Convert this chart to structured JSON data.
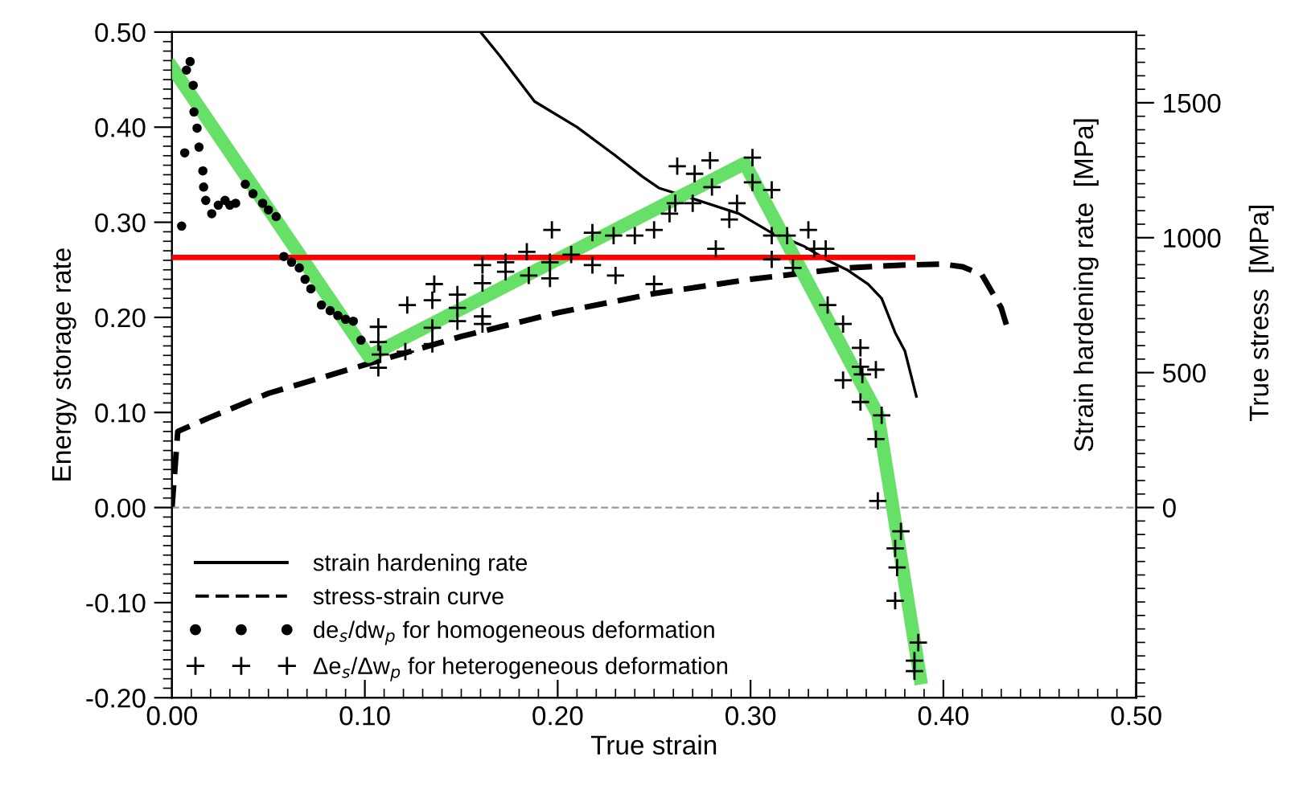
{
  "chart_data": {
    "type": "line",
    "xlabel": "True strain",
    "ylabel": "Energy storage rate",
    "y2label": "Strain hardening rate  [MPa]",
    "annotations": [
      "True stress  [MPa]"
    ],
    "xlim": [
      0,
      0.5
    ],
    "xticks": [
      {
        "value": 0,
        "label": "0.00"
      },
      {
        "value": 0.1,
        "label": "0.10"
      },
      {
        "value": 0.2,
        "label": "0.20"
      },
      {
        "value": 0.3,
        "label": "0.30"
      },
      {
        "value": 0.4,
        "label": "0.40"
      },
      {
        "value": 0.5,
        "label": "0.50"
      }
    ],
    "ylim": [
      -0.2,
      0.5
    ],
    "yticks": [
      {
        "value": -0.2,
        "label": "-0.20"
      },
      {
        "value": -0.1,
        "label": "-0.10"
      },
      {
        "value": 0,
        "label": "0.00"
      },
      {
        "value": 0.1,
        "label": "0.10"
      },
      {
        "value": 0.2,
        "label": "0.20"
      },
      {
        "value": 0.3,
        "label": "0.30"
      },
      {
        "value": 0.4,
        "label": "0.40"
      },
      {
        "value": 0.5,
        "label": "0.50"
      }
    ],
    "y2lim": [
      -705,
      1762
    ],
    "y2ticks": [
      0,
      500,
      1000,
      1500
    ],
    "grid": false,
    "legend": "bottom left",
    "ref_lines": [
      {
        "axis": "y",
        "value": 0,
        "color": "#999999",
        "line_style": "dashed"
      }
    ],
    "series": [
      {
        "name": "strain hardening rate",
        "axis": "y2",
        "color": "#000000",
        "line_style": "solid",
        "marker": "none",
        "x": [
          0.16,
          0.17,
          0.188,
          0.21,
          0.23,
          0.244,
          0.2525,
          0.27,
          0.294,
          0.31,
          0.3275,
          0.34,
          0.35,
          0.361,
          0.368,
          0.375,
          0.38,
          0.386
        ],
        "values": [
          1762,
          1674,
          1505,
          1410,
          1304,
          1226,
          1184,
          1145,
          1089,
          1022,
          969,
          916,
          881,
          828,
          775,
          648,
          581,
          412
        ]
      },
      {
        "name": "stress-strain curve",
        "axis": "y2",
        "color": "#000000",
        "line_style": "dashed",
        "marker": "none",
        "x": [
          0,
          0.003,
          0.02,
          0.05,
          0.1,
          0.15,
          0.2,
          0.25,
          0.3,
          0.35,
          0.38,
          0.4,
          0.41,
          0.42,
          0.43,
          0.433
        ],
        "values": [
          0,
          282,
          335,
          423,
          529,
          634,
          722,
          793,
          846,
          888,
          899,
          902,
          892,
          863,
          740,
          670
        ]
      },
      {
        "name": "de$_{s}$/dw$_{p}$ for homogeneous deformation",
        "type": "scatter",
        "color": "#000000",
        "marker": "circle",
        "x": [
          0.005,
          0.0066,
          0.0075,
          0.0094,
          0.011,
          0.0114,
          0.013,
          0.014,
          0.016,
          0.0164,
          0.0175,
          0.0206,
          0.024,
          0.0275,
          0.03,
          0.033,
          0.038,
          0.042,
          0.047,
          0.05,
          0.054,
          0.058,
          0.062,
          0.066,
          0.069,
          0.072,
          0.0775,
          0.082,
          0.086,
          0.09,
          0.094,
          0.098
        ],
        "values": [
          0.296,
          0.373,
          0.46,
          0.469,
          0.444,
          0.416,
          0.399,
          0.379,
          0.354,
          0.337,
          0.323,
          0.309,
          0.318,
          0.323,
          0.318,
          0.32,
          0.34,
          0.33,
          0.32,
          0.313,
          0.306,
          0.264,
          0.258,
          0.252,
          0.24,
          0.23,
          0.213,
          0.207,
          0.202,
          0.198,
          0.196,
          0.176
        ]
      },
      {
        "name": "Δe$_{s}$/Δw$_{p}$ for heterogeneous deformation",
        "type": "scatter",
        "color": "#000000",
        "marker": "cross",
        "x": [
          0.107,
          0.107,
          0.107,
          0.108,
          0.122,
          0.121,
          0.136,
          0.135,
          0.135,
          0.135,
          0.148,
          0.148,
          0.148,
          0.161,
          0.161,
          0.161,
          0.161,
          0.173,
          0.173,
          0.184,
          0.185,
          0.196,
          0.197,
          0.196,
          0.207,
          0.218,
          0.218,
          0.23,
          0.229,
          0.24,
          0.25,
          0.25,
          0.258,
          0.262,
          0.271,
          0.279,
          0.261,
          0.27,
          0.28,
          0.282,
          0.293,
          0.289,
          0.301,
          0.301,
          0.311,
          0.311,
          0.311,
          0.319,
          0.322,
          0.33,
          0.333,
          0.339,
          0.34,
          0.348,
          0.357,
          0.357,
          0.348,
          0.358,
          0.365,
          0.357,
          0.368,
          0.365,
          0.366,
          0.378,
          0.375,
          0.376,
          0.375,
          0.387,
          0.385,
          0.385
        ],
        "values": [
          0.19,
          0.174,
          0.147,
          0.161,
          0.213,
          0.164,
          0.235,
          0.218,
          0.189,
          0.172,
          0.224,
          0.21,
          0.196,
          0.255,
          0.236,
          0.201,
          0.193,
          0.258,
          0.248,
          0.269,
          0.244,
          0.241,
          0.292,
          0.258,
          0.266,
          0.289,
          0.255,
          0.244,
          0.286,
          0.286,
          0.235,
          0.292,
          0.309,
          0.359,
          0.351,
          0.365,
          0.32,
          0.32,
          0.337,
          0.272,
          0.32,
          0.303,
          0.368,
          0.342,
          0.334,
          0.286,
          0.261,
          0.286,
          0.252,
          0.292,
          0.272,
          0.272,
          0.213,
          0.193,
          0.168,
          0.148,
          0.134,
          0.14,
          0.145,
          0.111,
          0.097,
          0.072,
          0.007,
          -0.025,
          -0.043,
          -0.063,
          -0.098,
          -0.142,
          -0.161,
          -0.172
        ]
      },
      {
        "color": "#66e066",
        "line_style": "solid",
        "marker": "none",
        "x": [
          0,
          0.102,
          0.297,
          0.366,
          0.388
        ],
        "values": [
          0.463,
          0.159,
          0.362,
          0.098,
          -0.179
        ]
      },
      {
        "color": "#ff0000",
        "line_style": "solid",
        "marker": "none",
        "x": [
          0,
          0.384
        ],
        "values": [
          0.263,
          0.263
        ]
      }
    ]
  }
}
